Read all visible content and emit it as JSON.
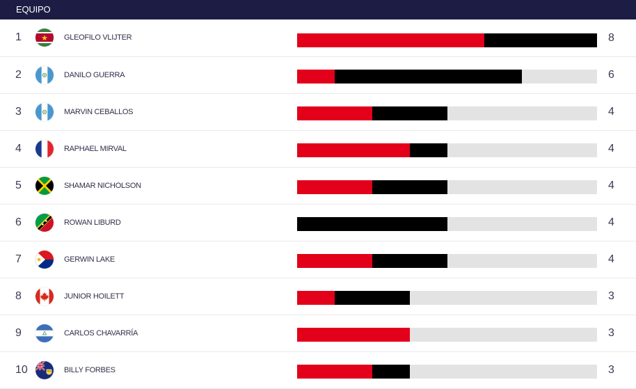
{
  "header": {
    "title": "EQUIPO"
  },
  "colors": {
    "header_bg": "#1c1c45",
    "red": "#e2001a",
    "black": "#000000",
    "track": "#e3e3e3"
  },
  "scale_max": 8,
  "players": [
    {
      "rank": "1",
      "name": "GLEOFILO VLIJTER",
      "flag": "suriname",
      "red": 5,
      "black": 3,
      "total": "8"
    },
    {
      "rank": "2",
      "name": "DANILO GUERRA",
      "flag": "guatemala",
      "red": 1,
      "black": 5,
      "total": "6"
    },
    {
      "rank": "3",
      "name": "MARVIN CEBALLOS",
      "flag": "guatemala",
      "red": 2,
      "black": 2,
      "total": "4"
    },
    {
      "rank": "4",
      "name": "RAPHAEL MIRVAL",
      "flag": "france",
      "red": 3,
      "black": 1,
      "total": "4"
    },
    {
      "rank": "5",
      "name": "SHAMAR NICHOLSON",
      "flag": "jamaica",
      "red": 2,
      "black": 2,
      "total": "4"
    },
    {
      "rank": "6",
      "name": "ROWAN LIBURD",
      "flag": "st-kitts-nevis",
      "red": 0,
      "black": 4,
      "total": "4"
    },
    {
      "rank": "7",
      "name": "GERWIN LAKE",
      "flag": "sint-maarten",
      "red": 2,
      "black": 2,
      "total": "4"
    },
    {
      "rank": "8",
      "name": "JUNIOR HOILETT",
      "flag": "canada",
      "red": 1,
      "black": 2,
      "total": "3"
    },
    {
      "rank": "9",
      "name": "CARLOS CHAVARRÍA",
      "flag": "nicaragua",
      "red": 3,
      "black": 0,
      "total": "3"
    },
    {
      "rank": "10",
      "name": "BILLY FORBES",
      "flag": "turks-caicos",
      "red": 2,
      "black": 1,
      "total": "3"
    }
  ]
}
